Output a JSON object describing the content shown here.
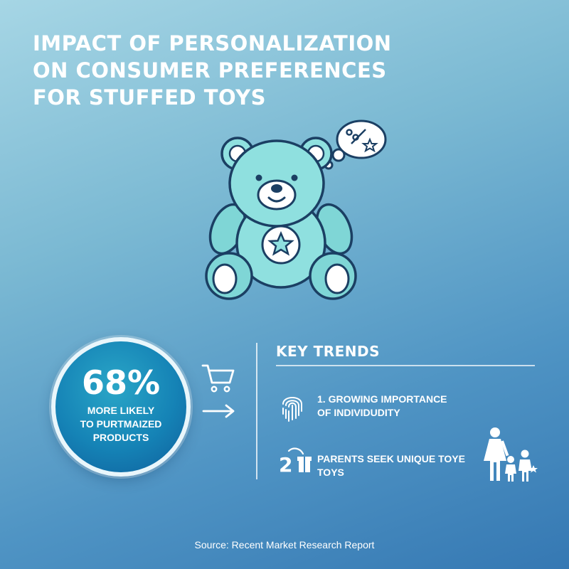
{
  "title_lines": [
    "IMPACT OF PERSONALIZATION",
    "ON CONSUMER PREFERENCES",
    "FOR STUFFED TOYS"
  ],
  "hero": {
    "icon": "teddy-bear-icon",
    "thought_icons": [
      "paintbrush-icon",
      "star-icon"
    ]
  },
  "stat": {
    "value": "68%",
    "text_lines": [
      "MORE LIKELY",
      "TO PURTMAIZED",
      "PRODUCTS"
    ]
  },
  "side_icons": [
    "shopping-cart-icon",
    "arrow-right-icon"
  ],
  "trends": {
    "heading": "KEY TRENDS",
    "items": [
      {
        "icon": "fingerprint-icon",
        "lines": [
          "1. GROWING IMPORTANCE",
          "OF INDIVIDUDITY"
        ]
      },
      {
        "icon": "number-2-gift-icon",
        "lines": [
          "PARENTS SEEK UNIQUE TOYE",
          "TOYS"
        ]
      }
    ],
    "illustration": "family-icon"
  },
  "source": "Source: Recent Market Research Report",
  "colors": {
    "background_top": "#a6d6e5",
    "background_bottom": "#3578b3",
    "bear": "#8fe0df",
    "bear_outline": "#1b3f63",
    "stat_circle": "#1583b6",
    "text": "#ffffff"
  }
}
